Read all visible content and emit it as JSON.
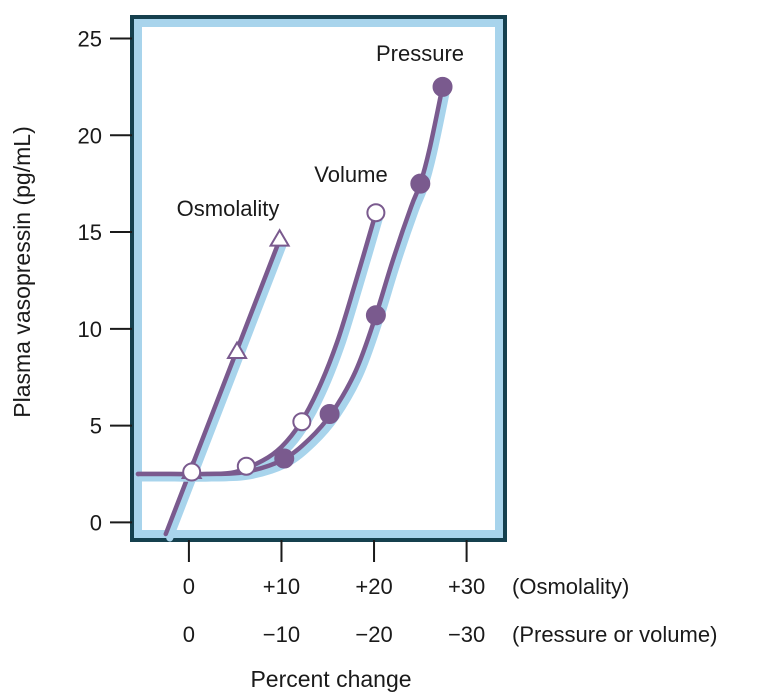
{
  "chart_data": {
    "type": "line",
    "ylabel": "Plasma vasopressin (pg/mL)",
    "xlabel": "Percent change",
    "ylim": [
      -0.6,
      25.8
    ],
    "xlim": [
      -5.5,
      33.5
    ],
    "yticks": [
      0,
      5,
      10,
      15,
      20,
      25
    ],
    "xticks": [
      0,
      10,
      20,
      30
    ],
    "x_tick_rows": [
      {
        "labels": [
          "0",
          "+10",
          "+20",
          "+30"
        ],
        "axis_label": "(Osmolality)"
      },
      {
        "labels": [
          "0",
          "−10",
          "−20",
          "−30"
        ],
        "axis_label": "(Pressure or volume)"
      }
    ],
    "grid": false,
    "colors": {
      "line": "#7a5a8e",
      "halo": "#a8d4ec",
      "frame": "#15404e",
      "marker_fill": "#7a5a8e"
    },
    "series": [
      {
        "name": "Osmolality",
        "marker": "open-triangle",
        "curve": [
          [
            -2.5,
            -0.6
          ],
          [
            9.8,
            14.6
          ]
        ],
        "points": [
          [
            0.3,
            2.6
          ],
          [
            5.2,
            8.8
          ],
          [
            9.8,
            14.6
          ]
        ]
      },
      {
        "name": "Volume",
        "marker": "open-circle",
        "curve": [
          [
            -5.5,
            2.5
          ],
          [
            -2,
            2.5
          ],
          [
            2,
            2.5
          ],
          [
            5,
            2.6
          ],
          [
            8,
            3.2
          ],
          [
            10,
            3.9
          ],
          [
            12,
            5.1
          ],
          [
            14,
            6.9
          ],
          [
            16,
            9.3
          ],
          [
            18,
            12.4
          ],
          [
            20.2,
            16
          ]
        ],
        "points": [
          [
            0.3,
            2.6
          ],
          [
            6.2,
            2.9
          ],
          [
            12.2,
            5.2
          ],
          [
            20.2,
            16
          ]
        ]
      },
      {
        "name": "Pressure",
        "marker": "filled-circle",
        "curve": [
          [
            -5.5,
            2.5
          ],
          [
            -2,
            2.5
          ],
          [
            2,
            2.5
          ],
          [
            6,
            2.6
          ],
          [
            10,
            3.2
          ],
          [
            13,
            4.3
          ],
          [
            15.5,
            5.7
          ],
          [
            18,
            7.8
          ],
          [
            20,
            10.4
          ],
          [
            22,
            13.5
          ],
          [
            24,
            16.3
          ],
          [
            25,
            17.5
          ],
          [
            26,
            19.3
          ],
          [
            27.4,
            22.5
          ]
        ],
        "points": [
          [
            10.3,
            3.3
          ],
          [
            15.2,
            5.6
          ],
          [
            20.2,
            10.7
          ],
          [
            25,
            17.5
          ],
          [
            27.4,
            22.5
          ]
        ]
      }
    ]
  }
}
